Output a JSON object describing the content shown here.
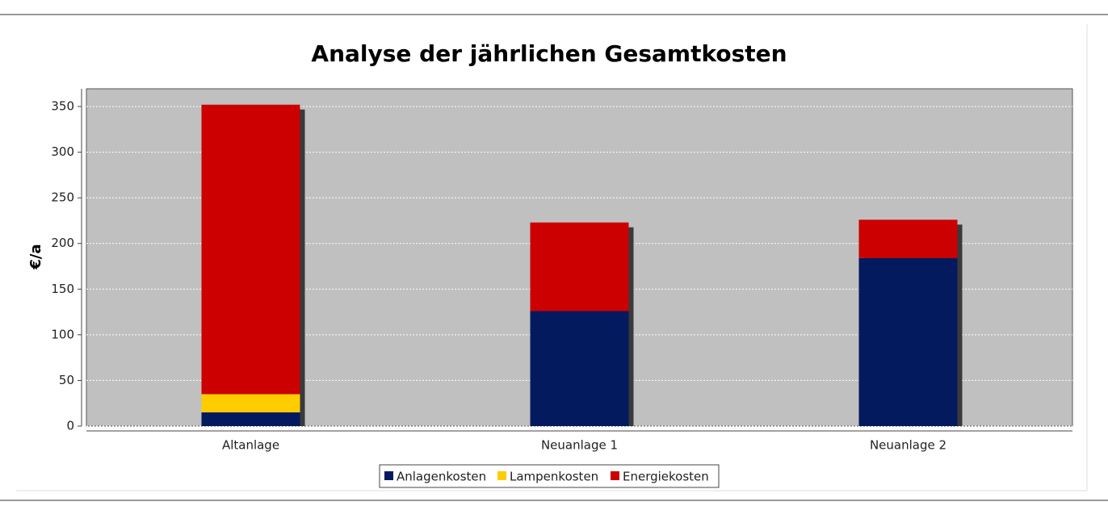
{
  "chart_data": {
    "type": "stacked_bar",
    "title": "Analyse der jährlichen Gesamtkosten",
    "y_label": "€/a",
    "categories": [
      "Altanlage",
      "Neuanlage 1",
      "Neuanlage 2"
    ],
    "series": [
      {
        "name": "Anlagenkosten",
        "color": "#031a5e",
        "values": [
          15,
          126,
          184
        ]
      },
      {
        "name": "Lampenkosten",
        "color": "#ffcc00",
        "values": [
          20,
          0,
          0
        ]
      },
      {
        "name": "Energiekosten",
        "color": "#cc0000",
        "values": [
          317,
          97,
          42
        ]
      }
    ],
    "ylim": [
      0,
      350
    ],
    "yticks": [
      0,
      50,
      100,
      150,
      200,
      250,
      300,
      350
    ],
    "grid": true
  }
}
